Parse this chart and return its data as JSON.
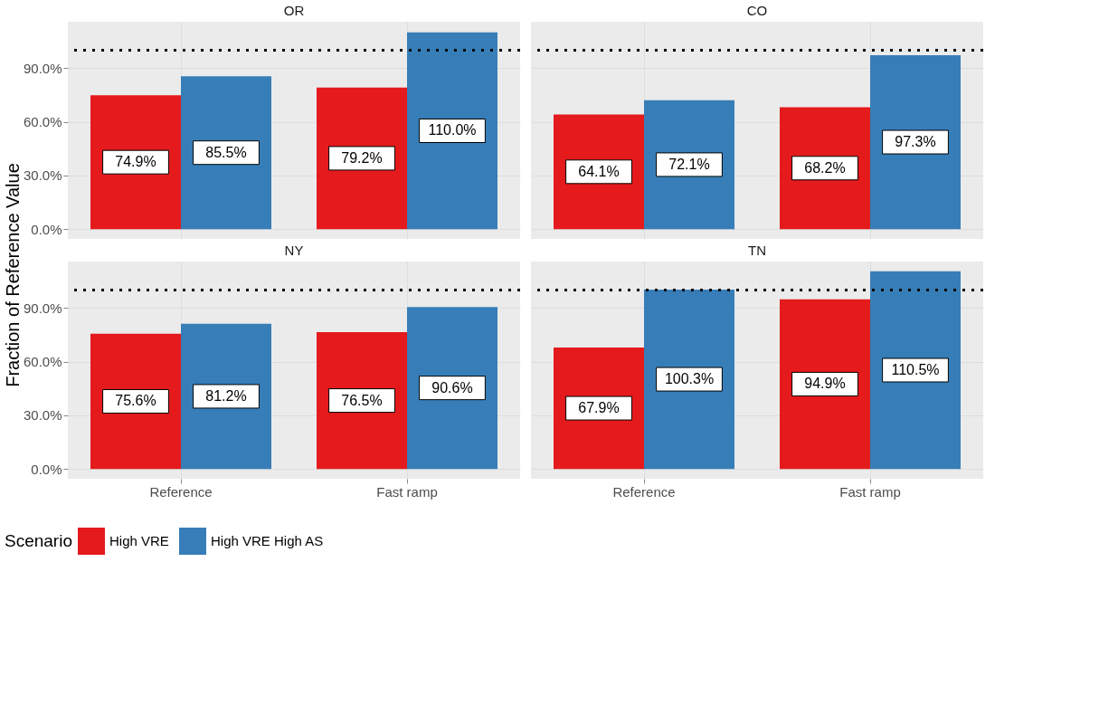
{
  "chart_data": [
    {
      "type": "bar",
      "title": "OR",
      "ylabel": "Fraction of Reference Value",
      "legend": "bottom",
      "legend_title": "Scenario",
      "tick_labels": "y",
      "grid": true,
      "categories": [
        "Reference",
        "Fast ramp"
      ],
      "series": [
        {
          "name": "High VRE",
          "color": "#e41a1c",
          "values": [
            74.9,
            79.2
          ],
          "value_labels": [
            "74.9%",
            "79.2%"
          ]
        },
        {
          "name": "High VRE High AS",
          "color": "#377eb8",
          "values": [
            85.5,
            110.0
          ],
          "value_labels": [
            "85.5%",
            "110.0%"
          ]
        }
      ],
      "ylim": [
        -5.5,
        116
      ],
      "yticks": [
        {
          "value": 0,
          "label": "0.0%"
        },
        {
          "value": 30,
          "label": "30.0%"
        },
        {
          "value": 60,
          "label": "60.0%"
        },
        {
          "value": 90,
          "label": "90.0%"
        }
      ],
      "ref_lines": [
        {
          "axis": "y",
          "value": 100,
          "color": "#000000",
          "line_style": "dotted"
        }
      ]
    },
    {
      "type": "bar",
      "title": "CO",
      "tick_labels": false,
      "grid": true,
      "categories": [
        "Reference",
        "Fast ramp"
      ],
      "series": [
        {
          "name": "High VRE",
          "color": "#e41a1c",
          "values": [
            64.1,
            68.2
          ],
          "value_labels": [
            "64.1%",
            "68.2%"
          ]
        },
        {
          "name": "High VRE High AS",
          "color": "#377eb8",
          "values": [
            72.1,
            97.3
          ],
          "value_labels": [
            "72.1%",
            "97.3%"
          ]
        }
      ],
      "ylim": [
        -5.5,
        116
      ],
      "yticks": [
        {
          "value": 0,
          "label": "0.0%"
        },
        {
          "value": 30,
          "label": "30.0%"
        },
        {
          "value": 60,
          "label": "60.0%"
        },
        {
          "value": 90,
          "label": "90.0%"
        }
      ],
      "ref_lines": [
        {
          "axis": "y",
          "value": 100,
          "color": "#000000",
          "line_style": "dotted"
        }
      ]
    },
    {
      "type": "bar",
      "title": "NY",
      "grid": true,
      "categories": [
        "Reference",
        "Fast ramp"
      ],
      "series": [
        {
          "name": "High VRE",
          "color": "#e41a1c",
          "values": [
            75.6,
            76.5
          ],
          "value_labels": [
            "75.6%",
            "76.5%"
          ]
        },
        {
          "name": "High VRE High AS",
          "color": "#377eb8",
          "values": [
            81.2,
            90.6
          ],
          "value_labels": [
            "81.2%",
            "90.6%"
          ]
        }
      ],
      "ylim": [
        -5.5,
        116
      ],
      "yticks": [
        {
          "value": 0,
          "label": "0.0%"
        },
        {
          "value": 30,
          "label": "30.0%"
        },
        {
          "value": 60,
          "label": "60.0%"
        },
        {
          "value": 90,
          "label": "90.0%"
        }
      ],
      "ref_lines": [
        {
          "axis": "y",
          "value": 100,
          "color": "#000000",
          "line_style": "dotted"
        }
      ]
    },
    {
      "type": "bar",
      "title": "TN",
      "tick_labels": "x",
      "grid": true,
      "categories": [
        "Reference",
        "Fast ramp"
      ],
      "series": [
        {
          "name": "High VRE",
          "color": "#e41a1c",
          "values": [
            67.9,
            94.9
          ],
          "value_labels": [
            "67.9%",
            "94.9%"
          ]
        },
        {
          "name": "High VRE High AS",
          "color": "#377eb8",
          "values": [
            100.3,
            110.5
          ],
          "value_labels": [
            "100.3%",
            "110.5%"
          ]
        }
      ],
      "ylim": [
        -5.5,
        116
      ],
      "yticks": [
        {
          "value": 0,
          "label": "0.0%"
        },
        {
          "value": 30,
          "label": "30.0%"
        },
        {
          "value": 60,
          "label": "60.0%"
        },
        {
          "value": 90,
          "label": "90.0%"
        }
      ],
      "ref_lines": [
        {
          "axis": "y",
          "value": 100,
          "color": "#000000",
          "line_style": "dotted"
        }
      ]
    }
  ]
}
